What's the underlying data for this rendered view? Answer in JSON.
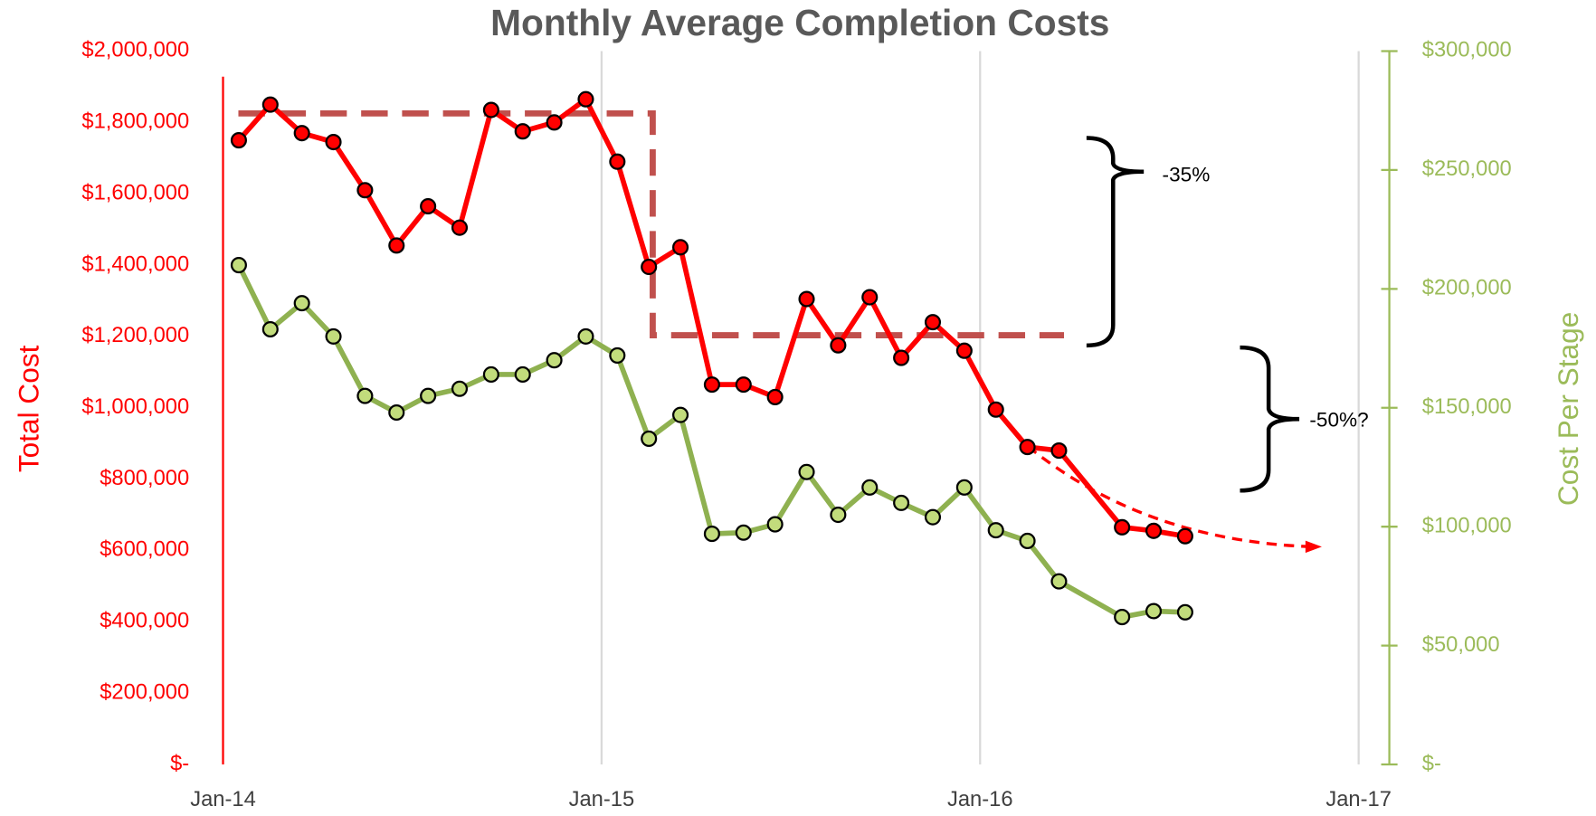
{
  "chart_data": {
    "type": "line",
    "title": "Monthly Average Completion Costs",
    "y_label": "Total Cost",
    "y2_label": "Cost Per Stage",
    "annotations": [
      "-35%",
      "-50%?"
    ],
    "x": [
      "2014-01",
      "2014-02",
      "2014-03",
      "2014-04",
      "2014-05",
      "2014-06",
      "2014-07",
      "2014-08",
      "2014-09",
      "2014-10",
      "2014-11",
      "2014-12",
      "2015-01",
      "2015-02",
      "2015-03",
      "2015-04",
      "2015-05",
      "2015-06",
      "2015-07",
      "2015-08",
      "2015-09",
      "2015-10",
      "2015-11",
      "2015-12",
      "2016-01",
      "2016-02",
      "2016-03",
      "2016-05",
      "2016-06",
      "2016-07"
    ],
    "xlim": [
      "2014-01",
      "2017-01"
    ],
    "xticks": [
      {
        "value": "2014-01",
        "label": "Jan-14"
      },
      {
        "value": "2015-01",
        "label": "Jan-15"
      },
      {
        "value": "2016-01",
        "label": "Jan-16"
      },
      {
        "value": "2017-01",
        "label": "Jan-17"
      }
    ],
    "series": [
      {
        "color": "#ff0000",
        "marker_color": "#ff0000",
        "axis": "y",
        "values": [
          1750000,
          1850000,
          1770000,
          1745000,
          1610000,
          1455000,
          1565000,
          1505000,
          1835000,
          1775000,
          1800000,
          1865000,
          1690000,
          1395000,
          1450000,
          1065000,
          1065000,
          1030000,
          1305000,
          1175000,
          1310000,
          1140000,
          1240000,
          1160000,
          995000,
          890000,
          880000,
          665000,
          655000,
          640000
        ]
      },
      {
        "color": "#8fb150",
        "marker_color": "#c2dc7c",
        "axis": "y2",
        "values": [
          210000,
          183000,
          194000,
          180000,
          155000,
          148000,
          155000,
          158000,
          164000,
          164000,
          170000,
          180000,
          172000,
          137000,
          147000,
          97000,
          97500,
          101000,
          123000,
          105000,
          116500,
          110000,
          104000,
          116500,
          98500,
          94000,
          77000,
          62000,
          64500,
          64000
        ]
      }
    ],
    "ylim": [
      0,
      2000000
    ],
    "yticks": [
      {
        "value": 0,
        "label": "$-"
      },
      {
        "value": 200000,
        "label": "$200,000"
      },
      {
        "value": 400000,
        "label": "$400,000"
      },
      {
        "value": 600000,
        "label": "$600,000"
      },
      {
        "value": 800000,
        "label": "$800,000"
      },
      {
        "value": 1000000,
        "label": "$1,000,000"
      },
      {
        "value": 1200000,
        "label": "$1,200,000"
      },
      {
        "value": 1400000,
        "label": "$1,400,000"
      },
      {
        "value": 1600000,
        "label": "$1,600,000"
      },
      {
        "value": 1800000,
        "label": "$1,800,000"
      },
      {
        "value": 2000000,
        "label": "$2,000,000"
      }
    ],
    "y2lim": [
      0,
      300000
    ],
    "y2ticks": [
      {
        "value": 0,
        "label": "$-"
      },
      {
        "value": 50000,
        "label": "$50,000"
      },
      {
        "value": 100000,
        "label": "$100,000"
      },
      {
        "value": 150000,
        "label": "$150,000"
      },
      {
        "value": 200000,
        "label": "$200,000"
      },
      {
        "value": 250000,
        "label": "$250,000"
      },
      {
        "value": 300000,
        "label": "$300,000"
      }
    ],
    "grid": true
  }
}
